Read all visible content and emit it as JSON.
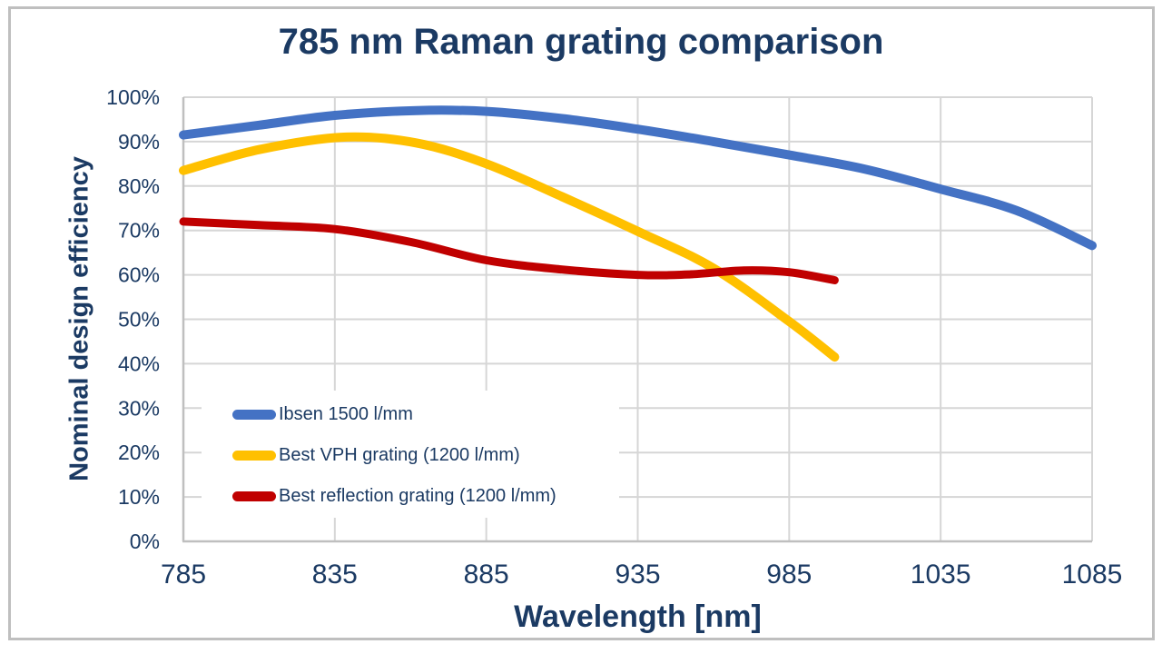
{
  "title": "785 nm Raman grating comparison",
  "chart_data": {
    "type": "line",
    "title": "785 nm Raman grating comparison",
    "xlabel": "Wavelength [nm]",
    "ylabel": "Nominal design efficiency",
    "xlim": [
      785,
      1085
    ],
    "ylim": [
      0,
      100
    ],
    "x_ticks": [
      785,
      835,
      885,
      935,
      985,
      1035,
      1085
    ],
    "x_tick_labels": [
      "785",
      "835",
      "885",
      "935",
      "985",
      "1035",
      "1085"
    ],
    "y_ticks": [
      0,
      10,
      20,
      30,
      40,
      50,
      60,
      70,
      80,
      90,
      100
    ],
    "y_tick_labels": [
      "0%",
      "10%",
      "20%",
      "30%",
      "40%",
      "50%",
      "60%",
      "70%",
      "80%",
      "90%",
      "100%"
    ],
    "grid": true,
    "legend_position": "inside-bottom-left",
    "series": [
      {
        "name": "Ibsen 1500 l/mm",
        "color": "#4472C4",
        "points": [
          [
            785,
            91.5
          ],
          [
            810,
            93.7
          ],
          [
            835,
            95.9
          ],
          [
            862,
            97.0
          ],
          [
            885,
            96.8
          ],
          [
            910,
            95.2
          ],
          [
            935,
            92.8
          ],
          [
            960,
            90.0
          ],
          [
            985,
            87.0
          ],
          [
            1010,
            83.8
          ],
          [
            1035,
            79.3
          ],
          [
            1060,
            74.5
          ],
          [
            1085,
            66.6
          ]
        ]
      },
      {
        "name": "Best VPH grating (1200 l/mm)",
        "color": "#FFC000",
        "points": [
          [
            785,
            83.5
          ],
          [
            810,
            88.2
          ],
          [
            838,
            91.0
          ],
          [
            862,
            89.7
          ],
          [
            885,
            85.0
          ],
          [
            910,
            77.6
          ],
          [
            935,
            69.8
          ],
          [
            960,
            61.5
          ],
          [
            985,
            49.5
          ],
          [
            1000,
            41.5
          ]
        ]
      },
      {
        "name": "Best reflection grating (1200 l/mm)",
        "color": "#C00000",
        "points": [
          [
            785,
            72.0
          ],
          [
            810,
            71.2
          ],
          [
            835,
            70.3
          ],
          [
            860,
            67.4
          ],
          [
            885,
            63.3
          ],
          [
            910,
            61.2
          ],
          [
            935,
            60.0
          ],
          [
            952,
            60.1
          ],
          [
            970,
            61.0
          ],
          [
            985,
            60.6
          ],
          [
            1000,
            58.8
          ]
        ]
      }
    ]
  },
  "colors": {
    "text": "#1B3A63",
    "gridline": "#D6D6D6",
    "axis": "#BFBFBF",
    "border": "#BFBFBF",
    "background": "#FFFFFF"
  }
}
